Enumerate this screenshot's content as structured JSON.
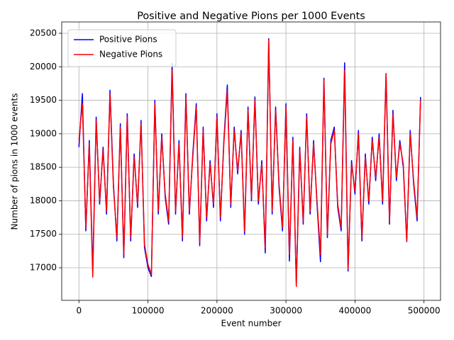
{
  "chart_data": {
    "type": "line",
    "title": "Positive and Negative Pions per 1000 Events",
    "x_label": "Event number",
    "y_label": "Number of pions in 1000 events",
    "xlim": [
      -24950,
      523950
    ],
    "ylim": [
      16514,
      20669
    ],
    "xticks": [
      0,
      100000,
      200000,
      300000,
      400000,
      500000
    ],
    "yticks": [
      17000,
      17500,
      18000,
      18500,
      19000,
      19500,
      20000,
      20500
    ],
    "grid": true,
    "legend": "upper left",
    "x": [
      0,
      5000,
      10000,
      15000,
      20000,
      25000,
      30000,
      35000,
      40000,
      45000,
      50000,
      55000,
      60000,
      65000,
      70000,
      75000,
      80000,
      85000,
      90000,
      95000,
      100000,
      105000,
      110000,
      115000,
      120000,
      125000,
      130000,
      135000,
      140000,
      145000,
      150000,
      155000,
      160000,
      165000,
      170000,
      175000,
      180000,
      185000,
      190000,
      195000,
      200000,
      205000,
      210000,
      215000,
      220000,
      225000,
      230000,
      235000,
      240000,
      245000,
      250000,
      255000,
      260000,
      265000,
      270000,
      275000,
      280000,
      285000,
      290000,
      295000,
      300000,
      305000,
      310000,
      315000,
      320000,
      325000,
      330000,
      335000,
      340000,
      345000,
      350000,
      355000,
      360000,
      365000,
      370000,
      375000,
      380000,
      385000,
      390000,
      395000,
      400000,
      405000,
      410000,
      415000,
      420000,
      425000,
      430000,
      435000,
      440000,
      445000,
      450000,
      455000,
      460000,
      465000,
      470000,
      475000,
      480000,
      485000,
      490000,
      495000
    ],
    "series": [
      {
        "name": "Positive Pions",
        "color": "#0000ff",
        "values": [
          18800,
          19600,
          17550,
          18900,
          16950,
          19250,
          17950,
          18800,
          17800,
          19650,
          18250,
          17400,
          19150,
          17150,
          19300,
          17400,
          18700,
          17900,
          19200,
          17300,
          17000,
          16870,
          19500,
          17800,
          19000,
          18050,
          17650,
          20050,
          17800,
          18900,
          17400,
          19600,
          17800,
          18700,
          19450,
          17330,
          19100,
          17700,
          18600,
          17900,
          19300,
          17700,
          18900,
          19730,
          17900,
          19100,
          18400,
          19050,
          17500,
          19400,
          18000,
          19550,
          17950,
          18600,
          17220,
          20420,
          17800,
          19400,
          18200,
          17550,
          19450,
          17100,
          18950,
          16750,
          18800,
          17650,
          19300,
          17800,
          18900,
          17950,
          17090,
          19830,
          17450,
          18900,
          19100,
          17900,
          17550,
          20060,
          16950,
          18600,
          18100,
          19050,
          17400,
          18700,
          17950,
          18950,
          18300,
          19000,
          17950,
          19900,
          17650,
          19350,
          18300,
          18900,
          18500,
          17390,
          19050,
          18250,
          17700,
          19550
        ]
      },
      {
        "name": "Negative Pions",
        "color": "#ff0000",
        "values": [
          18900,
          19450,
          17600,
          18850,
          16860,
          19200,
          18000,
          18750,
          17850,
          19600,
          18200,
          17450,
          19100,
          17200,
          19250,
          17450,
          18650,
          17950,
          19150,
          17350,
          17050,
          16900,
          19450,
          17850,
          18950,
          18100,
          17700,
          19950,
          17850,
          18850,
          17450,
          19550,
          17850,
          18650,
          19400,
          17380,
          19050,
          17750,
          18550,
          17950,
          19250,
          17750,
          18850,
          19650,
          17950,
          19050,
          18450,
          19000,
          17550,
          19350,
          18050,
          19500,
          18000,
          18550,
          17300,
          20400,
          17850,
          19350,
          18250,
          17600,
          19400,
          17200,
          18900,
          16720,
          18750,
          17700,
          19250,
          17850,
          18850,
          18000,
          17200,
          19800,
          17500,
          18850,
          19050,
          17950,
          17600,
          19950,
          16980,
          18550,
          18150,
          19000,
          17450,
          18650,
          18000,
          18900,
          18350,
          18950,
          18000,
          19900,
          17700,
          19300,
          18350,
          18850,
          18550,
          17400,
          19000,
          18300,
          17750,
          19500
        ]
      }
    ]
  }
}
